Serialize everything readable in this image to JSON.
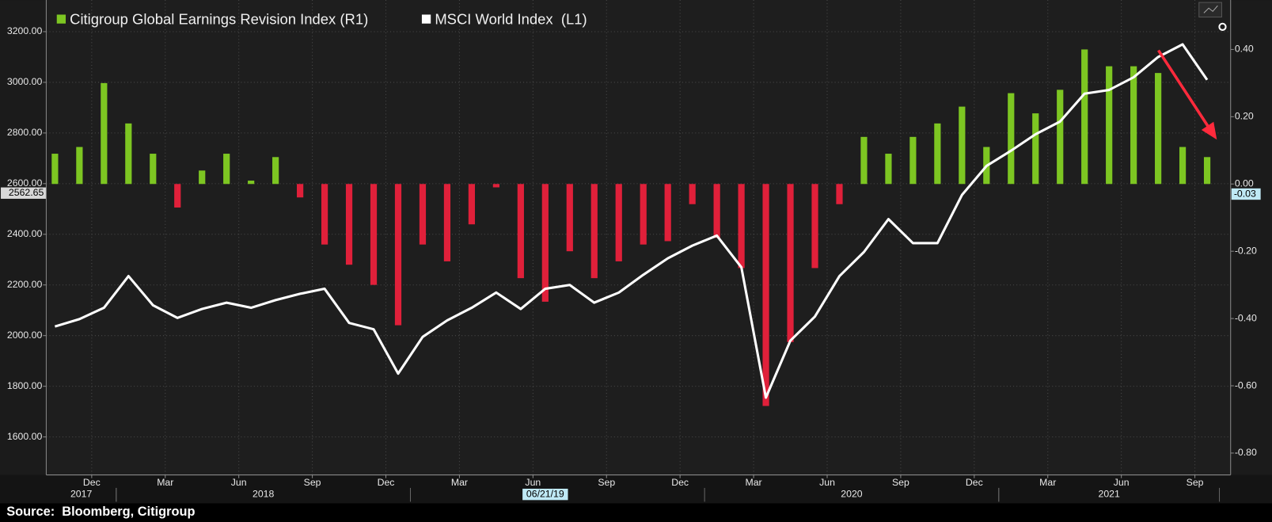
{
  "chart_data": {
    "type": "bar_line",
    "categories": [
      "2017-10",
      "2017-11",
      "2017-12",
      "2018-01",
      "2018-02",
      "2018-03",
      "2018-04",
      "2018-05",
      "2018-06",
      "2018-07",
      "2018-08",
      "2018-09",
      "2018-10",
      "2018-11",
      "2018-12",
      "2019-01",
      "2019-02",
      "2019-03",
      "2019-04",
      "2019-05",
      "2019-06",
      "2019-07",
      "2019-08",
      "2019-09",
      "2019-10",
      "2019-11",
      "2019-12",
      "2020-01",
      "2020-02",
      "2020-03",
      "2020-04",
      "2020-05",
      "2020-06",
      "2020-07",
      "2020-08",
      "2020-09",
      "2020-10",
      "2020-11",
      "2020-12",
      "2021-01",
      "2021-02",
      "2021-03",
      "2021-04",
      "2021-05",
      "2021-06",
      "2021-07",
      "2021-08",
      "2021-09"
    ],
    "series": [
      {
        "name": "Citigroup Global Earnings Revision Index (R1)",
        "type": "bar",
        "axis": "y2",
        "color": "#7dc622",
        "negative_color": "#e0203a",
        "values": [
          0.09,
          0.11,
          0.3,
          0.18,
          0.09,
          -0.07,
          0.04,
          0.09,
          0.01,
          0.08,
          -0.04,
          -0.18,
          -0.24,
          -0.3,
          -0.42,
          -0.18,
          -0.23,
          -0.12,
          -0.01,
          -0.28,
          -0.35,
          -0.2,
          -0.28,
          -0.23,
          -0.18,
          -0.17,
          -0.06,
          -0.16,
          -0.25,
          -0.66,
          -0.47,
          -0.25,
          -0.06,
          0.14,
          0.09,
          0.14,
          0.18,
          0.23,
          0.11,
          0.27,
          0.21,
          0.28,
          0.4,
          0.35,
          0.35,
          0.33,
          0.11,
          0.08
        ]
      },
      {
        "name": "MSCI World Index  (L1)",
        "type": "line",
        "axis": "y",
        "color": "#ffffff",
        "values": [
          2036,
          2065,
          2110,
          2235,
          2120,
          2070,
          2105,
          2130,
          2110,
          2140,
          2165,
          2185,
          2050,
          2025,
          1850,
          1995,
          2060,
          2110,
          2170,
          2105,
          2185,
          2200,
          2130,
          2170,
          2240,
          2305,
          2355,
          2395,
          2270,
          1755,
          1980,
          2075,
          2235,
          2330,
          2460,
          2365,
          2365,
          2555,
          2670,
          2730,
          2795,
          2845,
          2955,
          2970,
          3020,
          3100,
          3150,
          3010
        ]
      }
    ],
    "ylim": [
      1450,
      3325
    ],
    "yticks": [
      {
        "value": 1600,
        "label": "1600.00"
      },
      {
        "value": 1800,
        "label": "1800.00"
      },
      {
        "value": 2000,
        "label": "2000.00"
      },
      {
        "value": 2200,
        "label": "2200.00"
      },
      {
        "value": 2400,
        "label": "2400.00"
      },
      {
        "value": 2600,
        "label": "2600.00"
      },
      {
        "value": 2800,
        "label": "2800.00"
      },
      {
        "value": 3000,
        "label": "3000.00"
      },
      {
        "value": 3200,
        "label": "3200.00"
      }
    ],
    "y2lim": [
      -0.865,
      0.547
    ],
    "y2ticks": [
      {
        "value": -0.8,
        "label": "-0.80"
      },
      {
        "value": -0.6,
        "label": "-0.60"
      },
      {
        "value": -0.4,
        "label": "-0.40"
      },
      {
        "value": -0.2,
        "label": "-0.20"
      },
      {
        "value": 0,
        "label": "0.00"
      },
      {
        "value": 0.2,
        "label": "0.20"
      },
      {
        "value": 0.4,
        "label": "0.40"
      }
    ],
    "y_marker": 2562.65,
    "y2_marker": -0.03,
    "xticks": [
      {
        "value": "2017-12",
        "label": "Dec"
      },
      {
        "value": "2018-03",
        "label": "Mar"
      },
      {
        "value": "2018-06",
        "label": "Jun"
      },
      {
        "value": "2018-09",
        "label": "Sep"
      },
      {
        "value": "2018-12",
        "label": "Dec"
      },
      {
        "value": "2019-03",
        "label": "Mar"
      },
      {
        "value": "2019-06",
        "label": "Jun"
      },
      {
        "value": "2019-09",
        "label": "Sep"
      },
      {
        "value": "2019-12",
        "label": "Dec"
      },
      {
        "value": "2020-03",
        "label": "Mar"
      },
      {
        "value": "2020-06",
        "label": "Jun"
      },
      {
        "value": "2020-09",
        "label": "Sep"
      },
      {
        "value": "2020-12",
        "label": "Dec"
      },
      {
        "value": "2021-03",
        "label": "Mar"
      },
      {
        "value": "2021-06",
        "label": "Jun"
      },
      {
        "value": "2021-09",
        "label": "Sep"
      }
    ],
    "year_labels": [
      2017,
      2018,
      2020,
      2021
    ],
    "date_marker": {
      "value": "2019-06",
      "label": "06/21/19"
    },
    "grid": true,
    "source": "Source:  Bloomberg, Citigroup"
  }
}
